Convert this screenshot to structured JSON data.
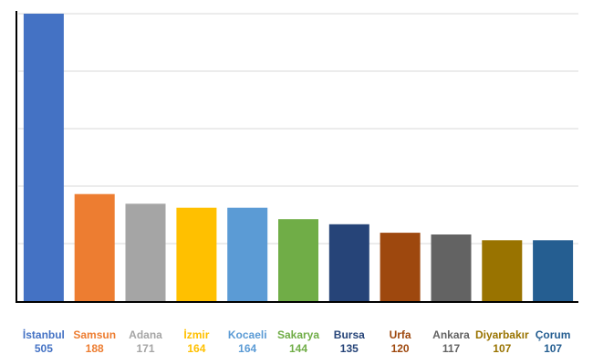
{
  "chart_data": {
    "type": "bar",
    "title": "",
    "xlabel": "",
    "ylabel": "",
    "ylim": [
      0,
      505
    ],
    "grid": true,
    "categories": [
      "İstanbul",
      "Samsun",
      "Adana",
      "İzmir",
      "Kocaeli",
      "Sakarya",
      "Bursa",
      "Urfa",
      "Ankara",
      "Diyarbakır",
      "Çorum"
    ],
    "values": [
      505,
      188,
      171,
      164,
      164,
      144,
      135,
      120,
      117,
      107,
      107
    ],
    "colors": [
      "#4472C4",
      "#ED7D31",
      "#A5A5A5",
      "#FFC000",
      "#5B9BD5",
      "#70AD47",
      "#264478",
      "#9E480E",
      "#636363",
      "#997300",
      "#255E91"
    ],
    "label_colors": [
      "#4472C4",
      "#ED7D31",
      "#A5A5A5",
      "#FFC000",
      "#5B9BD5",
      "#70AD47",
      "#264478",
      "#9E480E",
      "#636363",
      "#997300",
      "#255E91"
    ]
  }
}
